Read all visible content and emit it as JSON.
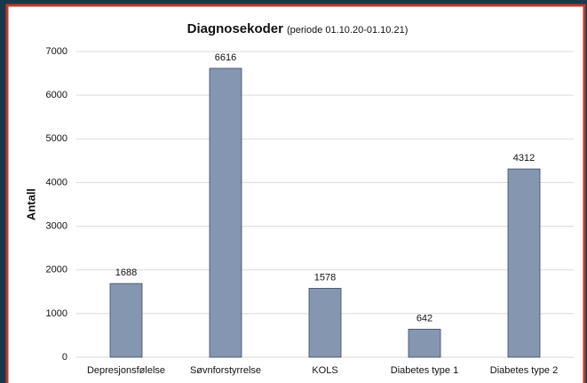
{
  "chart_data": {
    "type": "bar",
    "title": "Diagnosekoder",
    "subtitle": "(periode 01.10.20-01.10.21)",
    "y_label": "Antall",
    "categories": [
      "Depresjonsfølelse",
      "Søvnforstyrrelse",
      "KOLS",
      "Diabetes type 1",
      "Diabetes type 2"
    ],
    "values": [
      1688,
      6616,
      1578,
      642,
      4312
    ],
    "color": "#8596b0",
    "ylim": [
      0,
      7000
    ],
    "yticks": [
      0,
      1000,
      2000,
      3000,
      4000,
      5000,
      6000,
      7000
    ],
    "grid": true
  }
}
